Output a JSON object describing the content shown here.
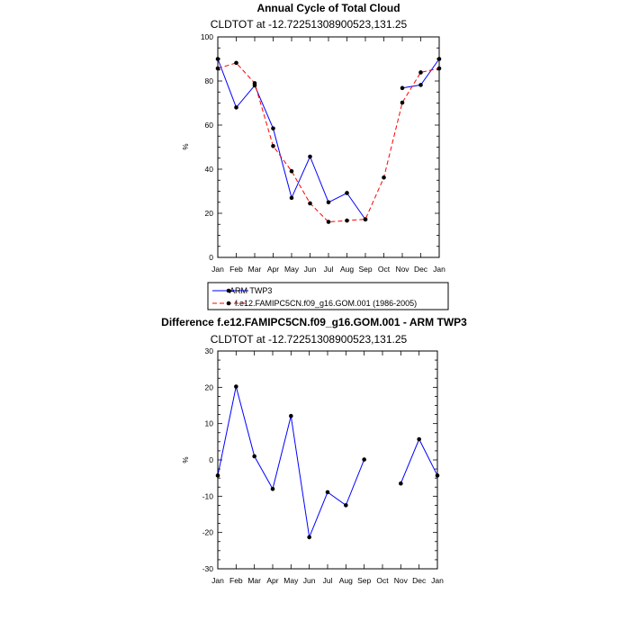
{
  "chart_data": [
    {
      "type": "line",
      "title": "Annual Cycle of Total Cloud",
      "subtitle": "CLDTOT at -12.72251308900523,131.25",
      "xlabel": "",
      "ylabel": "%",
      "categories": [
        "Jan",
        "Feb",
        "Mar",
        "Apr",
        "May",
        "Jun",
        "Jul",
        "Aug",
        "Sep",
        "Oct",
        "Nov",
        "Dec",
        "Jan"
      ],
      "ylim": [
        0,
        100
      ],
      "yticks": [
        0,
        20,
        40,
        60,
        80,
        100
      ],
      "series": [
        {
          "name": "ARM TWP3",
          "color": "#0000ff",
          "dash": "solid",
          "values": [
            90,
            68,
            78,
            58.5,
            27,
            45.7,
            25,
            29.2,
            17.2,
            null,
            76.8,
            78.2,
            90
          ]
        },
        {
          "name": "f.e12.FAMIPC5CN.f09_g16.GOM.001 (1986-2005)",
          "color": "#ff0000",
          "dash": "dashed",
          "values": [
            85.7,
            88.2,
            79,
            50.5,
            39.1,
            24.5,
            16.1,
            16.7,
            17.3,
            36.2,
            70.2,
            83.9,
            85.7
          ]
        }
      ],
      "legend": {
        "entries": [
          "ARM TWP3",
          "f.e12.FAMIPC5CN.f09_g16.GOM.001 (1986-2005)"
        ],
        "placement": "below"
      }
    },
    {
      "type": "line",
      "title": "Difference f.e12.FAMIPC5CN.f09_g16.GOM.001 - ARM TWP3",
      "subtitle": "CLDTOT at -12.72251308900523,131.25",
      "xlabel": "",
      "ylabel": "%",
      "categories": [
        "Jan",
        "Feb",
        "Mar",
        "Apr",
        "May",
        "Jun",
        "Jul",
        "Aug",
        "Sep",
        "Oct",
        "Nov",
        "Dec",
        "Jan"
      ],
      "ylim": [
        -30,
        30
      ],
      "yticks": [
        -30,
        -20,
        -10,
        0,
        10,
        20,
        30
      ],
      "series": [
        {
          "name": "Difference",
          "color": "#0000ff",
          "dash": "solid",
          "values": [
            -4.3,
            20.2,
            1,
            -8,
            12.1,
            -21.3,
            -8.9,
            -12.5,
            0.1,
            null,
            -6.5,
            5.7,
            -4.3
          ]
        }
      ]
    }
  ]
}
